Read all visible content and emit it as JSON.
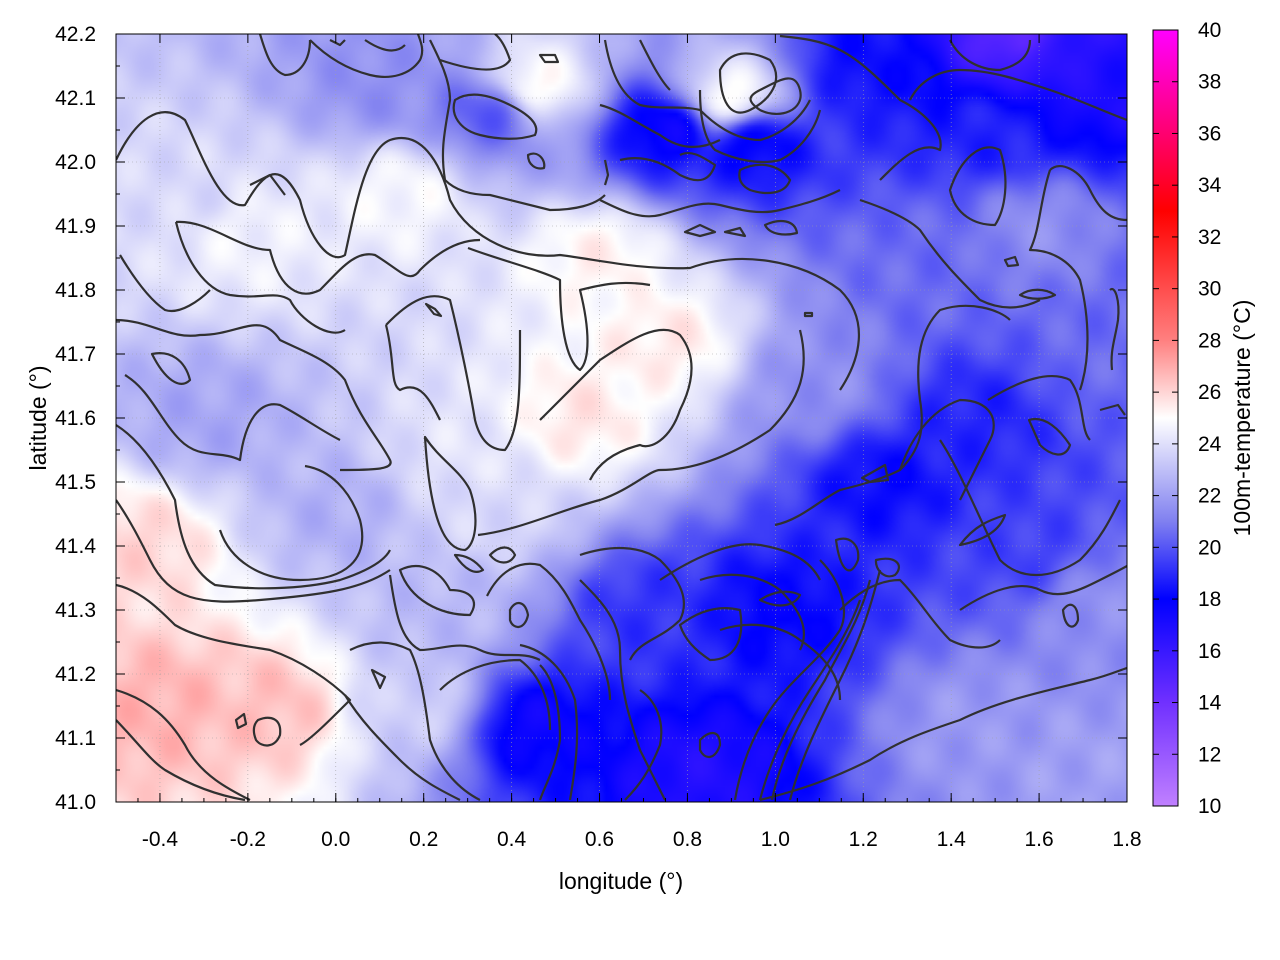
{
  "chart_data": {
    "type": "heatmap",
    "title": "",
    "xlabel": "longitude (°)",
    "ylabel": "latitude (°)",
    "colorbar_label": "100m-temperature (°C)",
    "xlim": [
      -0.5,
      1.8
    ],
    "ylim": [
      41.0,
      42.2
    ],
    "x_ticks": [
      "-0.4",
      "-0.2",
      "0.0",
      "0.2",
      "0.4",
      "0.6",
      "0.8",
      "1.0",
      "1.2",
      "1.4",
      "1.6",
      "1.8"
    ],
    "x_tick_values": [
      -0.4,
      -0.2,
      0.0,
      0.2,
      0.4,
      0.6,
      0.8,
      1.0,
      1.2,
      1.4,
      1.6,
      1.8
    ],
    "y_ticks": [
      "41.0",
      "41.1",
      "41.2",
      "41.3",
      "41.4",
      "41.5",
      "41.6",
      "41.7",
      "41.8",
      "41.9",
      "42.0",
      "42.1",
      "42.2"
    ],
    "y_tick_values": [
      41.0,
      41.1,
      41.2,
      41.3,
      41.4,
      41.5,
      41.6,
      41.7,
      41.8,
      41.9,
      42.0,
      42.1,
      42.2
    ],
    "colorbar_range": [
      10,
      40
    ],
    "colorbar_ticks": [
      "10",
      "12",
      "14",
      "16",
      "18",
      "20",
      "22",
      "24",
      "26",
      "28",
      "30",
      "32",
      "34",
      "36",
      "38",
      "40"
    ],
    "colorbar_tick_values": [
      10,
      12,
      14,
      16,
      18,
      20,
      22,
      24,
      26,
      28,
      30,
      32,
      34,
      36,
      38,
      40
    ],
    "colormap": [
      {
        "value": 10,
        "color": "#c080ff"
      },
      {
        "value": 14,
        "color": "#7030ff"
      },
      {
        "value": 18,
        "color": "#0000ff"
      },
      {
        "value": 21,
        "color": "#8080f0"
      },
      {
        "value": 25,
        "color": "#ffffff"
      },
      {
        "value": 28,
        "color": "#ff8080"
      },
      {
        "value": 33,
        "color": "#ff0000"
      },
      {
        "value": 36,
        "color": "#ff0070"
      },
      {
        "value": 40,
        "color": "#ff00ff"
      }
    ],
    "grid": true,
    "contour_color": "#303030",
    "field_samples": [
      {
        "lon": -0.4,
        "lat": 41.15,
        "t": 26.8
      },
      {
        "lon": -0.15,
        "lat": 41.15,
        "t": 26.5
      },
      {
        "lon": -0.45,
        "lat": 41.4,
        "t": 26.0
      },
      {
        "lon": 0.55,
        "lat": 41.6,
        "t": 25.6
      },
      {
        "lon": 0.75,
        "lat": 41.72,
        "t": 25.5
      },
      {
        "lon": 0.6,
        "lat": 41.85,
        "t": 25.3
      },
      {
        "lon": 0.9,
        "lat": 42.1,
        "t": 25.2
      },
      {
        "lon": 0.45,
        "lat": 42.12,
        "t": 25.2
      },
      {
        "lon": -0.2,
        "lat": 41.88,
        "t": 24.6
      },
      {
        "lon": 0.15,
        "lat": 41.95,
        "t": 24.8
      },
      {
        "lon": -0.3,
        "lat": 41.6,
        "t": 22.2
      },
      {
        "lon": 0.0,
        "lat": 41.45,
        "t": 22.5
      },
      {
        "lon": 0.25,
        "lat": 41.3,
        "t": 22.8
      },
      {
        "lon": 0.3,
        "lat": 41.55,
        "t": 24.2
      },
      {
        "lon": 0.45,
        "lat": 41.12,
        "t": 17.5
      },
      {
        "lon": 0.82,
        "lat": 41.05,
        "t": 16.8
      },
      {
        "lon": 1.0,
        "lat": 41.3,
        "t": 18.0
      },
      {
        "lon": 0.7,
        "lat": 41.3,
        "t": 19.2
      },
      {
        "lon": 1.25,
        "lat": 41.5,
        "t": 18.2
      },
      {
        "lon": 1.45,
        "lat": 41.6,
        "t": 18.8
      },
      {
        "lon": 1.55,
        "lat": 41.4,
        "t": 19.5
      },
      {
        "lon": 1.1,
        "lat": 41.65,
        "t": 21.5
      },
      {
        "lon": 1.35,
        "lat": 41.85,
        "t": 20.5
      },
      {
        "lon": 1.6,
        "lat": 41.9,
        "t": 21.5
      },
      {
        "lon": 1.5,
        "lat": 42.05,
        "t": 18.8
      },
      {
        "lon": 1.62,
        "lat": 42.17,
        "t": 16.5
      },
      {
        "lon": 1.55,
        "lat": 42.19,
        "t": 14.5
      },
      {
        "lon": 1.75,
        "lat": 42.12,
        "t": 17.0
      },
      {
        "lon": 1.2,
        "lat": 42.15,
        "t": 18.3
      },
      {
        "lon": 0.75,
        "lat": 42.05,
        "t": 17.5
      },
      {
        "lon": 0.95,
        "lat": 42.03,
        "t": 17.8
      },
      {
        "lon": 0.35,
        "lat": 42.08,
        "t": 20.0
      },
      {
        "lon": 0.1,
        "lat": 42.12,
        "t": 21.5
      },
      {
        "lon": 1.45,
        "lat": 41.12,
        "t": 21.8
      },
      {
        "lon": 1.7,
        "lat": 41.05,
        "t": 22.0
      },
      {
        "lon": 1.75,
        "lat": 41.3,
        "t": 21.5
      },
      {
        "lon": 1.75,
        "lat": 41.7,
        "t": 20.5
      },
      {
        "lon": 0.2,
        "lat": 41.15,
        "t": 23.5
      },
      {
        "lon": 0.35,
        "lat": 41.45,
        "t": 23.8
      },
      {
        "lon": -0.35,
        "lat": 41.95,
        "t": 23.8
      }
    ]
  }
}
